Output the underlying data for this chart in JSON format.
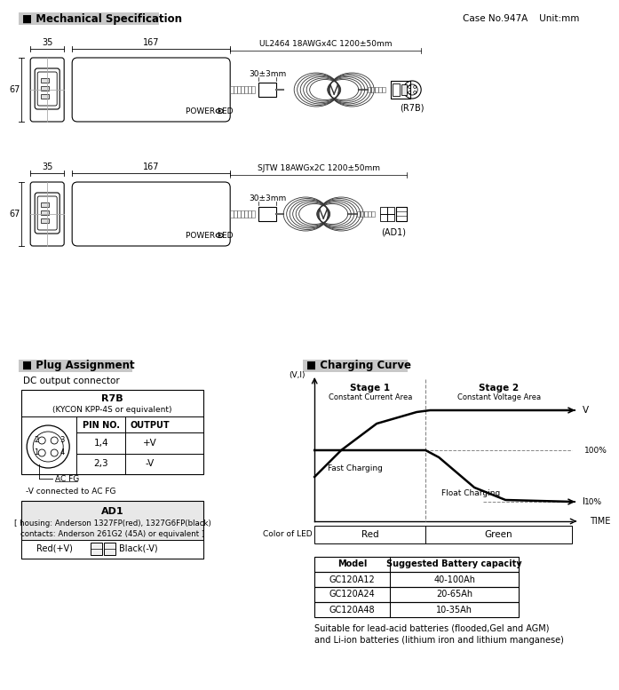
{
  "bg_color": "#ffffff",
  "title_section1": "■ Mechanical Specification",
  "title_section2": "■ Plug Assignment",
  "title_section3": "■ Charging Curve",
  "case_no": "Case No.947A    Unit:mm",
  "dim1_35": "35",
  "dim1_167": "167",
  "dim1_67": "67",
  "cable1_label": "UL2464 18AWGx4C 1200±50mm",
  "cable1_30mm": "30±3mm",
  "cable1_tag": "(R7B)",
  "cable2_label": "SJTW 18AWGx2C 1200±50mm",
  "cable2_30mm": "30±3mm",
  "cable2_tag": "(AD1)",
  "power_led": "POWER LED",
  "dc_output": "DC output connector",
  "r7b_title": "R7B",
  "r7b_sub": "(KYCON KPP-4S or equivalent)",
  "pin_no": "PIN NO.",
  "output_label": "OUTPUT",
  "pin1": "1,4",
  "out1": "+V",
  "pin2": "2,3",
  "out2": "-V",
  "ac_fg": "AC FG",
  "ac_fg_note": "-V connected to AC FG",
  "ad1_title": "AD1",
  "ad1_line1": "[ housing: Anderson 1327FP(red), 1327G6FP(black)",
  "ad1_line2": "contacts: Anderson 261G2 (45A) or equivalent ]",
  "red_label": "Red(+V)",
  "black_label": "Black(-V)",
  "stage1_title": "Stage 1",
  "stage1_sub": "Constant Current Area",
  "stage2_title": "Stage 2",
  "stage2_sub": "Constant Voltage Area",
  "v_label": "V",
  "i_label": "I",
  "vi_label": "(V,I)",
  "time_label": "TIME",
  "pct100": "100%",
  "pct10": "10%",
  "fast_charging": "Fast Charging",
  "float_charging": "Float Charging",
  "color_led": "Color of LED",
  "red_led": "Red",
  "green_led": "Green",
  "table_header": [
    "Model",
    "Suggested Battery capacity"
  ],
  "table_rows": [
    [
      "GC120A12",
      "40-100Ah"
    ],
    [
      "GC120A24",
      "20-65Ah"
    ],
    [
      "GC120A48",
      "10-35Ah"
    ]
  ],
  "note_line1": "Suitable for lead-acid batteries (flooded,Gel and AGM)",
  "note_line2": "and Li-ion batteries (lithium iron and lithium manganese)"
}
